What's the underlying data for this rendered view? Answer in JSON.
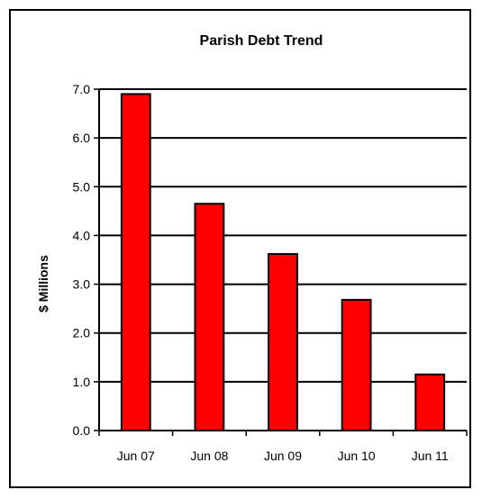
{
  "chart_data": {
    "type": "bar",
    "title": "Parish Debt Trend",
    "xlabel": "",
    "ylabel": "$ Millions",
    "categories": [
      "Jun 07",
      "Jun 08",
      "Jun 09",
      "Jun 10",
      "Jun 11"
    ],
    "values": [
      6.9,
      4.65,
      3.62,
      2.68,
      1.15
    ],
    "ylim": [
      0,
      7
    ],
    "yticks": [
      "0.0",
      "1.0",
      "2.0",
      "3.0",
      "4.0",
      "5.0",
      "6.0",
      "7.0"
    ],
    "bar_color": "#ff0000",
    "grid": true,
    "legend": "none"
  }
}
